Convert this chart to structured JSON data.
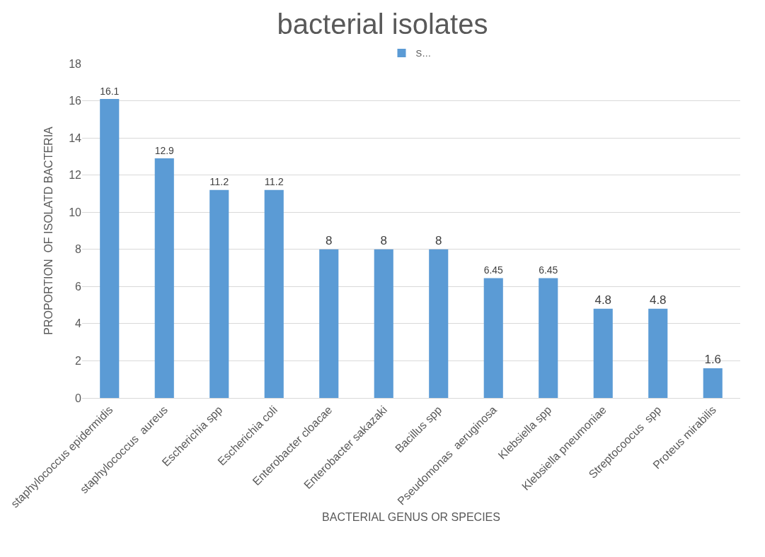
{
  "chart_data": {
    "type": "bar",
    "title": "bacterial isolates",
    "xlabel": "BACTERIAL GENUS OR SPECIES",
    "ylabel": "PROPORTION  OF ISOLATD BACTERIA",
    "categories": [
      "staphylococcus epidermidis",
      "staphylococcus  aureus",
      "Escherichia spp",
      "Escherichia coli",
      "Enterobacter cloacae",
      "Enterobacter sakazaki",
      "Bacillus spp",
      "Pseudomonas  aeruginosa",
      "Klebsiella spp",
      "Klebsiella pneumoniae",
      "Streptocoocus  spp",
      "Proteus mirabilis"
    ],
    "series": [
      {
        "name": "S…",
        "color": "#5b9bd5",
        "values": [
          16.1,
          12.9,
          11.2,
          11.2,
          8,
          8,
          8,
          6.45,
          6.45,
          4.8,
          4.8,
          1.6
        ]
      }
    ],
    "data_labels": true,
    "ylim": [
      0,
      18
    ],
    "yticks": [
      0,
      2,
      4,
      6,
      8,
      10,
      12,
      14,
      16,
      18
    ],
    "grid": "y",
    "legend": "top"
  }
}
